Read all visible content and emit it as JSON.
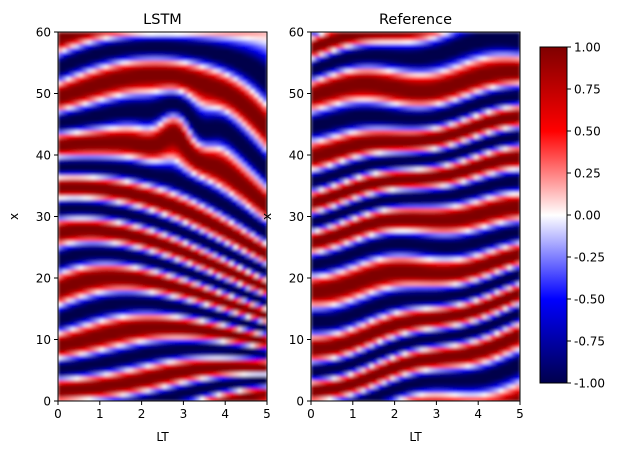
{
  "chart_data": [
    {
      "type": "heatmap",
      "title": "LSTM",
      "xlabel": "LT",
      "ylabel": "x",
      "xlim": [
        0,
        5
      ],
      "ylim": [
        0,
        60
      ],
      "x_ticks": [
        "0",
        "1",
        "2",
        "3",
        "4",
        "5"
      ],
      "y_ticks": [
        "0",
        "10",
        "20",
        "30",
        "40",
        "50",
        "60"
      ],
      "field": "traveling stripe pattern with values in [-1, 1]; stripes descend towards lower x as LT increases, tangled crossing near LT≈3, x≈43"
    },
    {
      "type": "heatmap",
      "title": "Reference",
      "xlabel": "LT",
      "ylabel": "x",
      "xlim": [
        0,
        5
      ],
      "ylim": [
        0,
        60
      ],
      "x_ticks": [
        "0",
        "1",
        "2",
        "3",
        "4",
        "5"
      ],
      "y_ticks": [
        "0",
        "10",
        "20",
        "30",
        "40",
        "50",
        "60"
      ],
      "field": "traveling stripe pattern with values in [-1, 1]; stripes rise towards higher x as LT increases"
    }
  ],
  "colorbar": {
    "colormap": "seismic",
    "vmin": -1.0,
    "vmax": 1.0,
    "ticks": [
      "-1.00",
      "-0.75",
      "-0.50",
      "-0.25",
      "0.00",
      "0.25",
      "0.50",
      "0.75",
      "1.00"
    ],
    "colors": {
      "low": "#00004c",
      "mid": "#ffffff",
      "high": "#7f0000"
    }
  }
}
